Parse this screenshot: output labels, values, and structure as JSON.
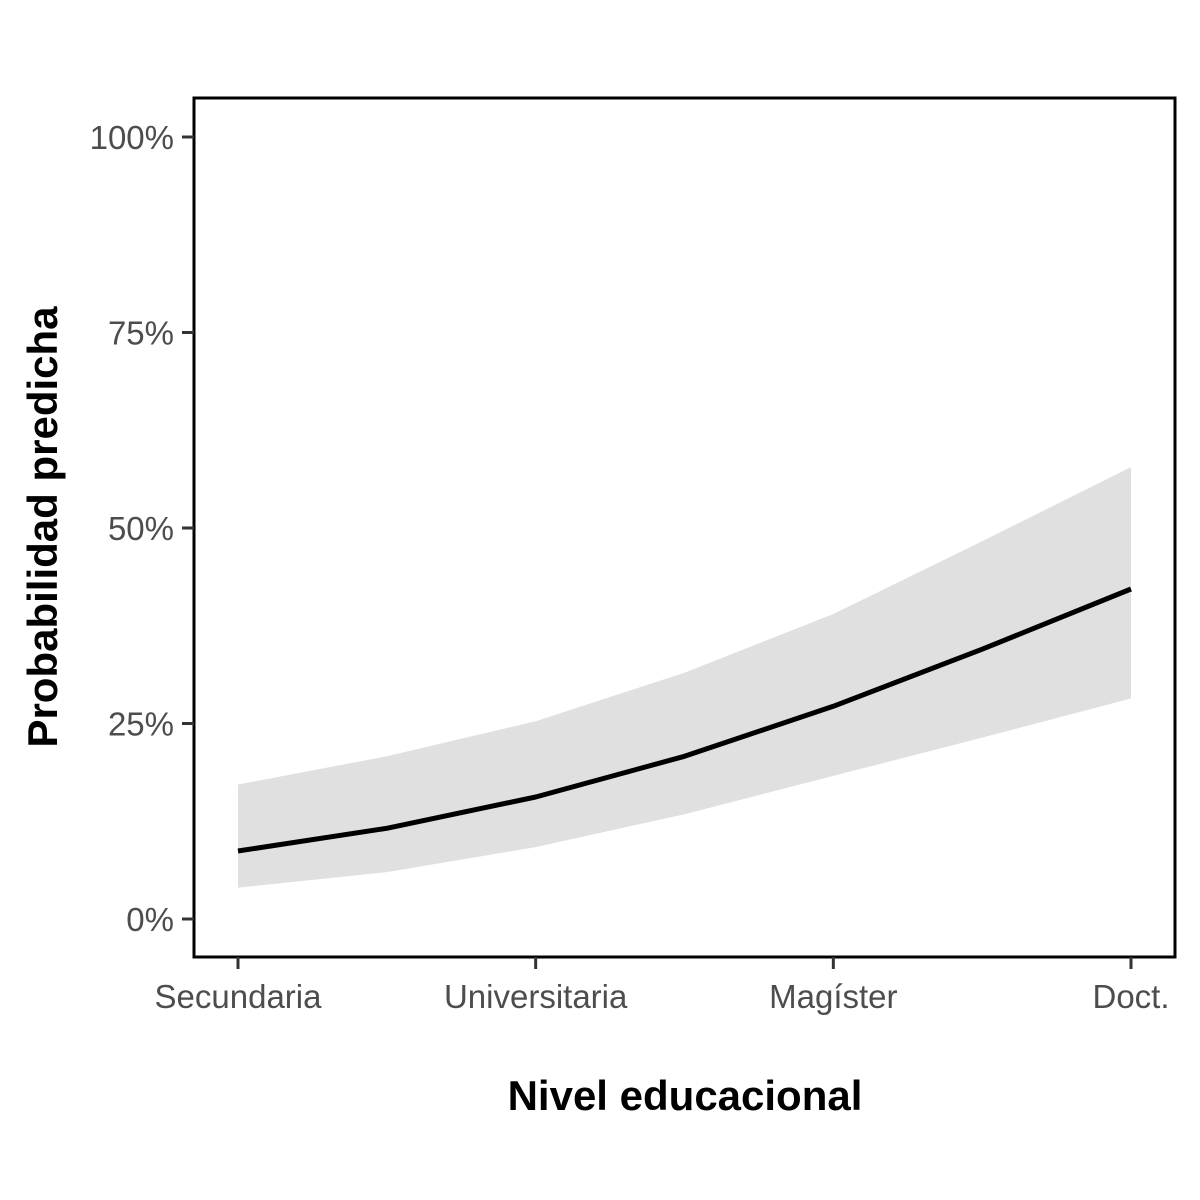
{
  "chart_data": {
    "type": "line",
    "title": "",
    "xlabel": "Nivel educacional",
    "ylabel": "Probabilidad predicha",
    "x_range": [
      1,
      4
    ],
    "ylim": [
      0,
      1
    ],
    "x_ticks": [
      {
        "value": 1,
        "label": "Secundaria"
      },
      {
        "value": 2,
        "label": "Universitaria"
      },
      {
        "value": 3,
        "label": "Magíster"
      },
      {
        "value": 4,
        "label": "Doct."
      }
    ],
    "y_ticks": [
      {
        "value": 0,
        "label": "0%"
      },
      {
        "value": 0.25,
        "label": "25%"
      },
      {
        "value": 0.5,
        "label": "50%"
      },
      {
        "value": 0.75,
        "label": "75%"
      },
      {
        "value": 1,
        "label": "100%"
      }
    ],
    "grid": false,
    "legend": "none",
    "series": [
      {
        "x": [
          1,
          1.5,
          2,
          2.5,
          3,
          3.5,
          4
        ],
        "y": [
          0.087,
          0.116,
          0.156,
          0.208,
          0.272,
          0.345,
          0.422
        ],
        "lower": [
          0.04,
          0.06,
          0.092,
          0.134,
          0.183,
          0.232,
          0.282
        ],
        "upper": [
          0.172,
          0.208,
          0.253,
          0.315,
          0.39,
          0.483,
          0.578
        ]
      }
    ],
    "colors": {
      "line": "#000000",
      "ribbon": "#e0e0e0",
      "panel_border": "#000000"
    }
  }
}
